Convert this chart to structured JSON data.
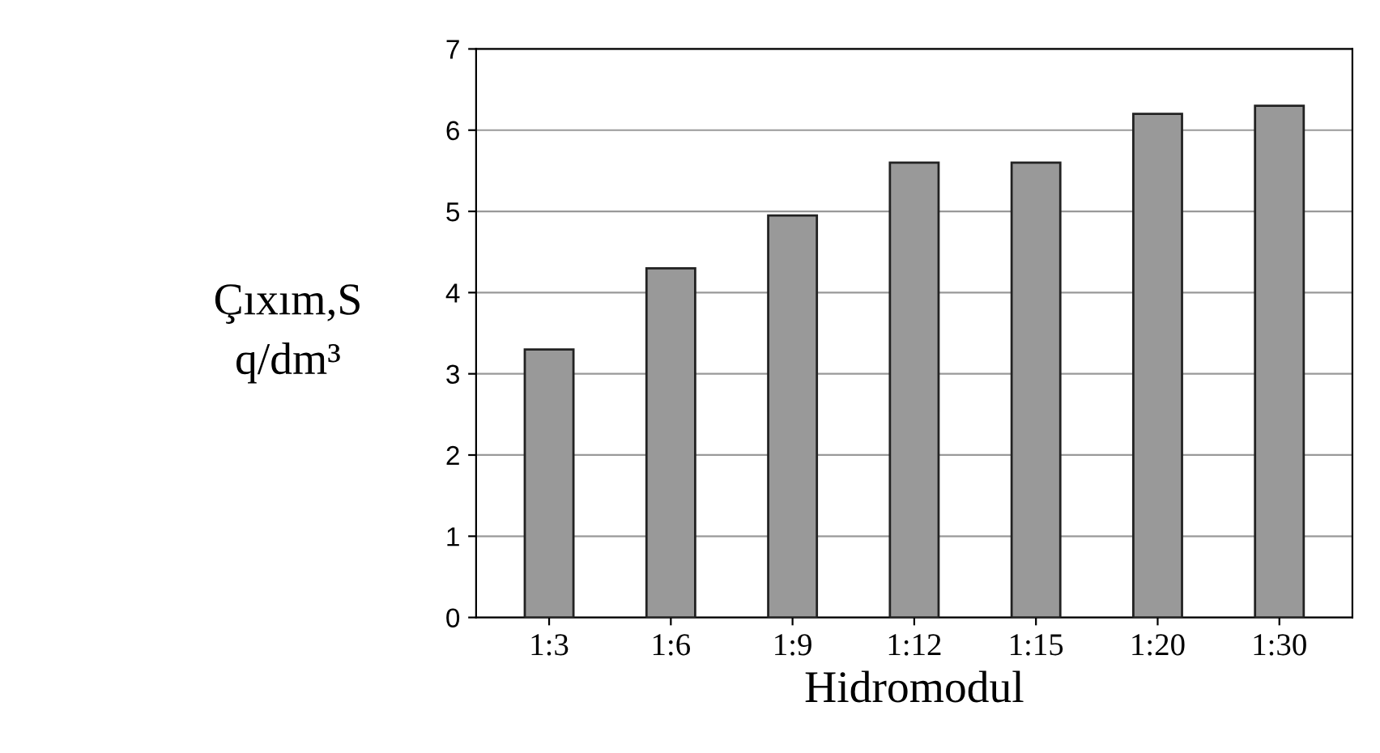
{
  "chart_data": {
    "type": "bar",
    "xlabel": "Hidromodul",
    "ylabel": "Çıxım,S\nq/dm³",
    "categories": [
      "1:3",
      "1:6",
      "1:9",
      "1:12",
      "1:15",
      "1:20",
      "1:30"
    ],
    "values": [
      3.3,
      4.3,
      4.95,
      5.6,
      5.6,
      6.2,
      6.3
    ],
    "color": "#999999",
    "ylim": [
      0,
      7
    ],
    "yticks": [
      0,
      1,
      2,
      3,
      4,
      5,
      6,
      7
    ],
    "grid": "y"
  }
}
